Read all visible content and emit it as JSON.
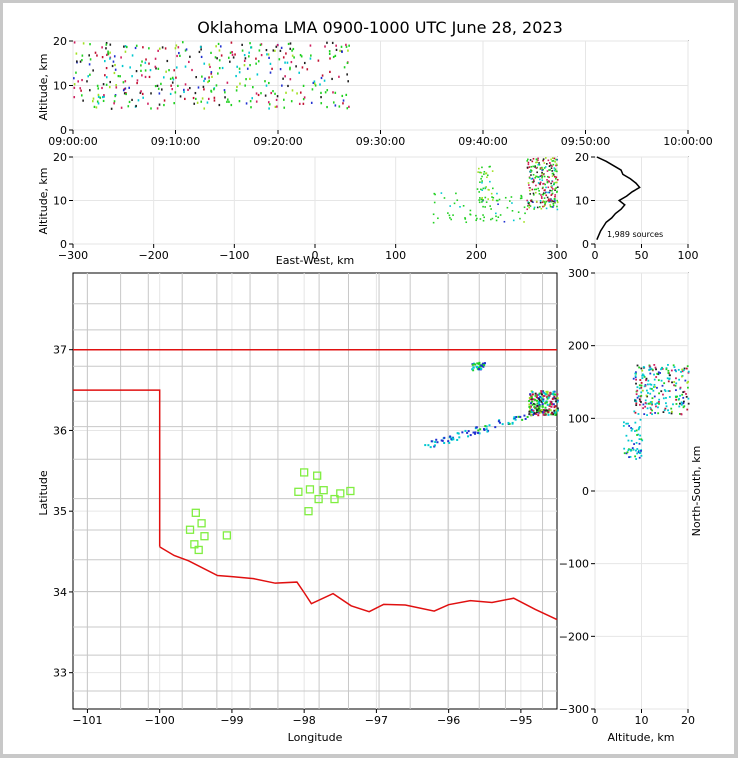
{
  "title": "Oklahoma LMA 0900-1000 UTC June 28, 2023",
  "colors": {
    "state_border": "#e01010",
    "county_lines": "#c8c8c8",
    "station": "#80ee40",
    "palette": [
      "#2030d0",
      "#00c8d0",
      "#20d020",
      "#a0e020",
      "#202020",
      "#d02060",
      "#c01030"
    ]
  },
  "chart_data": [
    {
      "id": "time_height",
      "type": "scatter",
      "title": "Oklahoma LMA 0900-1000 UTC June 28, 2023",
      "xlabel": "",
      "ylabel": "Altitude, km",
      "xlim_min": [
        0,
        60
      ],
      "ylim": [
        0,
        20
      ],
      "yticks": [
        "0",
        "10",
        "20"
      ],
      "xticks": [
        "09:00:00",
        "09:10:00",
        "09:20:00",
        "09:30:00",
        "09:40:00",
        "09:50:00",
        "10:00:00"
      ],
      "series_note": "sources appear mostly between 09:00 and 09:27 at 5-20 km",
      "clusters": [
        {
          "t_min": [
            0,
            27
          ],
          "alt_km": [
            5,
            20
          ]
        }
      ]
    },
    {
      "id": "ew_height",
      "type": "scatter",
      "xlabel": "East-West, km",
      "ylabel": "Altitude, km",
      "xlim": [
        -300,
        300
      ],
      "ylim": [
        0,
        20
      ],
      "xticks": [
        "−300",
        "−200",
        "−100",
        "0",
        "100",
        "200",
        "300"
      ],
      "yticks": [
        "0",
        "10",
        "20"
      ],
      "clusters": [
        {
          "x_km": [
            265,
            300
          ],
          "alt_km": [
            8,
            20
          ]
        },
        {
          "x_km": [
            140,
            260
          ],
          "alt_km": [
            5,
            12
          ]
        },
        {
          "x_km": [
            200,
            220
          ],
          "alt_km": [
            10,
            18
          ]
        }
      ]
    },
    {
      "id": "alt_histogram",
      "type": "line",
      "xlim": [
        0,
        100
      ],
      "ylim": [
        0,
        20
      ],
      "xticks": [
        "0",
        "50",
        "100"
      ],
      "yticks": [
        "0",
        "10",
        "20"
      ],
      "annotation": "1,989 sources",
      "profile": [
        {
          "alt": 1,
          "n": 2
        },
        {
          "alt": 2,
          "n": 4
        },
        {
          "alt": 3,
          "n": 6
        },
        {
          "alt": 4,
          "n": 9
        },
        {
          "alt": 5,
          "n": 12
        },
        {
          "alt": 6,
          "n": 18
        },
        {
          "alt": 7,
          "n": 22
        },
        {
          "alt": 8,
          "n": 28
        },
        {
          "alt": 9,
          "n": 32
        },
        {
          "alt": 10,
          "n": 26
        },
        {
          "alt": 11,
          "n": 34
        },
        {
          "alt": 12,
          "n": 40
        },
        {
          "alt": 13,
          "n": 48
        },
        {
          "alt": 14,
          "n": 44
        },
        {
          "alt": 15,
          "n": 38
        },
        {
          "alt": 16,
          "n": 30
        },
        {
          "alt": 17,
          "n": 28
        },
        {
          "alt": 18,
          "n": 20
        },
        {
          "alt": 19,
          "n": 12
        },
        {
          "alt": 20,
          "n": 2
        }
      ]
    },
    {
      "id": "plan_view",
      "type": "scatter",
      "xlabel": "Longitude",
      "ylabel": "Latitude",
      "xlim": [
        -101.2,
        -94.5
      ],
      "ylim": [
        32.55,
        37.95
      ],
      "xticks": [
        "−101",
        "−100",
        "−99",
        "−98",
        "−97",
        "−96",
        "−95"
      ],
      "yticks": [
        "33",
        "34",
        "35",
        "36",
        "37"
      ],
      "stations": [
        {
          "lon": -99.5,
          "lat": 34.98
        },
        {
          "lon": -99.42,
          "lat": 34.85
        },
        {
          "lon": -99.58,
          "lat": 34.77
        },
        {
          "lon": -99.38,
          "lat": 34.69
        },
        {
          "lon": -99.52,
          "lat": 34.59
        },
        {
          "lon": -99.46,
          "lat": 34.52
        },
        {
          "lon": -99.07,
          "lat": 34.7
        },
        {
          "lon": -98.0,
          "lat": 35.48
        },
        {
          "lon": -97.82,
          "lat": 35.44
        },
        {
          "lon": -98.08,
          "lat": 35.24
        },
        {
          "lon": -97.92,
          "lat": 35.27
        },
        {
          "lon": -97.73,
          "lat": 35.26
        },
        {
          "lon": -97.8,
          "lat": 35.15
        },
        {
          "lon": -97.58,
          "lat": 35.15
        },
        {
          "lon": -97.36,
          "lat": 35.25
        },
        {
          "lon": -97.94,
          "lat": 35.0
        },
        {
          "lon": -97.5,
          "lat": 35.22
        }
      ],
      "clusters": [
        {
          "lon": [
            -94.9,
            -94.5
          ],
          "lat": [
            36.2,
            36.5
          ]
        },
        {
          "lon": [
            -95.7,
            -95.5
          ],
          "lat": [
            36.75,
            36.85
          ]
        },
        {
          "lon": [
            -96.4,
            -94.9
          ],
          "lat": [
            35.8,
            36.2
          ]
        }
      ]
    },
    {
      "id": "ns_height",
      "type": "scatter",
      "xlabel": "Altitude, km",
      "ylabel": "North-South, km",
      "xlim": [
        0,
        20
      ],
      "ylim": [
        -300,
        300
      ],
      "xticks": [
        "0",
        "10",
        "20"
      ],
      "yticks": [
        "−300",
        "−200",
        "−100",
        "0",
        "100",
        "200",
        "300"
      ],
      "clusters": [
        {
          "alt_km": [
            8,
            20
          ],
          "y_km": [
            105,
            175
          ]
        },
        {
          "alt_km": [
            6,
            10
          ],
          "y_km": [
            45,
            100
          ]
        }
      ]
    }
  ]
}
